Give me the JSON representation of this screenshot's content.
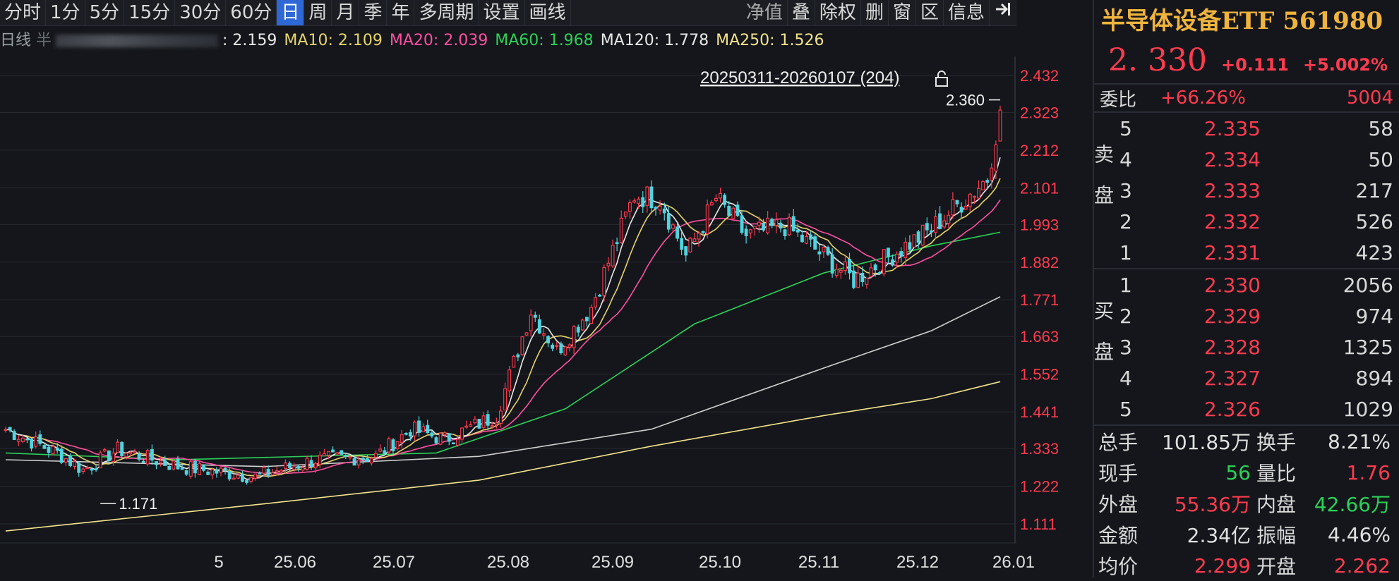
{
  "toolbar": {
    "periods": [
      "分时",
      "1分",
      "5分",
      "15分",
      "30分",
      "60分",
      "日",
      "周",
      "月",
      "季",
      "年",
      "多周期",
      "设置",
      "画线"
    ],
    "active_period": "日",
    "right_items": [
      "净值",
      "叠",
      "除权",
      "删",
      "窗",
      "区",
      "信息"
    ],
    "exit_icon": "exit-arrow-icon"
  },
  "ma_line": {
    "prefix": "日线",
    "name_blurred": "半",
    "ma5_value": ": 2.159",
    "ma10": "MA10: 2.109",
    "ma20": "MA20: 2.039",
    "ma60": "MA60: 1.968",
    "ma120": "MA120: 1.778",
    "ma250": "MA250: 1.526"
  },
  "chart": {
    "range_label": "20250311-20260107 (204)",
    "lock_icon": "lock-icon",
    "high_marker": "2.360",
    "low_marker": "1.171",
    "colors": {
      "up": "#ff3b4f",
      "down": "#4fd4e0",
      "ma5": "#e8e8e8",
      "ma10": "#e6d46b",
      "ma20": "#ff4fa0",
      "ma60": "#2bd158",
      "ma120": "#cfcfcf",
      "ma250": "#f2e38b",
      "axis": "#ff3b4f"
    }
  },
  "chart_data": {
    "type": "candlestick",
    "y_ticks": [
      "2.432",
      "2.323",
      "2.212",
      "2.101",
      "1.993",
      "1.882",
      "1.771",
      "1.663",
      "1.552",
      "1.441",
      "1.333",
      "1.222",
      "1.111"
    ],
    "ylim": [
      1.055,
      2.488
    ],
    "x_ticks": [
      "5",
      "25.06",
      "25.07",
      "25.08",
      "25.09",
      "25.10",
      "25.11",
      "25.12",
      "26.01"
    ],
    "anchors": [
      {
        "t": 0,
        "p": 1.39
      },
      {
        "t": 12,
        "p": 1.32
      },
      {
        "t": 18,
        "p": 1.27
      },
      {
        "t": 26,
        "p": 1.33
      },
      {
        "t": 40,
        "p": 1.28
      },
      {
        "t": 58,
        "p": 1.25
      },
      {
        "t": 72,
        "p": 1.3
      },
      {
        "t": 86,
        "p": 1.31
      },
      {
        "t": 94,
        "p": 1.39
      },
      {
        "t": 102,
        "p": 1.36
      },
      {
        "t": 114,
        "p": 1.43
      },
      {
        "t": 122,
        "p": 1.74
      },
      {
        "t": 128,
        "p": 1.62
      },
      {
        "t": 136,
        "p": 1.75
      },
      {
        "t": 146,
        "p": 2.08
      },
      {
        "t": 152,
        "p": 2.07
      },
      {
        "t": 158,
        "p": 1.9
      },
      {
        "t": 165,
        "p": 2.07
      },
      {
        "t": 172,
        "p": 1.96
      },
      {
        "t": 181,
        "p": 1.99
      },
      {
        "t": 190,
        "p": 1.9
      },
      {
        "t": 197,
        "p": 1.83
      },
      {
        "t": 209,
        "p": 1.93
      },
      {
        "t": 214,
        "p": 1.97
      },
      {
        "t": 222,
        "p": 2.06
      },
      {
        "t": 228,
        "p": 2.13
      },
      {
        "t": 231,
        "p": 2.33
      }
    ],
    "n_candles": 232,
    "ma_paths": {
      "ma60": [
        [
          0,
          1.32
        ],
        [
          40,
          1.3
        ],
        [
          100,
          1.32
        ],
        [
          130,
          1.45
        ],
        [
          160,
          1.7
        ],
        [
          190,
          1.85
        ],
        [
          215,
          1.93
        ],
        [
          231,
          1.97
        ]
      ],
      "ma120": [
        [
          0,
          1.3
        ],
        [
          60,
          1.28
        ],
        [
          110,
          1.31
        ],
        [
          150,
          1.39
        ],
        [
          190,
          1.57
        ],
        [
          215,
          1.68
        ],
        [
          231,
          1.78
        ]
      ],
      "ma250": [
        [
          0,
          1.09
        ],
        [
          60,
          1.17
        ],
        [
          110,
          1.24
        ],
        [
          150,
          1.34
        ],
        [
          190,
          1.43
        ],
        [
          215,
          1.48
        ],
        [
          231,
          1.53
        ]
      ]
    }
  },
  "panel": {
    "title": "半导体设备ETF 561980",
    "price": "2. 330",
    "change": "+0.111",
    "change_pct": "+5.002%",
    "weibi_label": "委比",
    "weibi_pct": "+66.26%",
    "weibi_num": "5004",
    "sell_label": "卖盘",
    "buy_label": "买盘",
    "sell": [
      {
        "lvl": "5",
        "price": "2.335",
        "vol": "58"
      },
      {
        "lvl": "4",
        "price": "2.334",
        "vol": "50"
      },
      {
        "lvl": "3",
        "price": "2.333",
        "vol": "217"
      },
      {
        "lvl": "2",
        "price": "2.332",
        "vol": "526"
      },
      {
        "lvl": "1",
        "price": "2.331",
        "vol": "423"
      }
    ],
    "buy": [
      {
        "lvl": "1",
        "price": "2.330",
        "vol": "2056"
      },
      {
        "lvl": "2",
        "price": "2.329",
        "vol": "974"
      },
      {
        "lvl": "3",
        "price": "2.328",
        "vol": "1325"
      },
      {
        "lvl": "4",
        "price": "2.327",
        "vol": "894"
      },
      {
        "lvl": "5",
        "price": "2.326",
        "vol": "1029"
      }
    ],
    "stats": [
      {
        "k": "总手",
        "v": "101.85万",
        "vc": "white",
        "k2": "换手",
        "v2": "8.21%",
        "v2c": "white"
      },
      {
        "k": "现手",
        "v": "56",
        "vc": "green",
        "k2": "量比",
        "v2": "1.76",
        "v2c": "red"
      },
      {
        "k": "外盘",
        "v": "55.36万",
        "vc": "red",
        "k2": "内盘",
        "v2": "42.66万",
        "v2c": "green"
      },
      {
        "k": "金额",
        "v": "2.34亿",
        "vc": "white",
        "k2": "振幅",
        "v2": "4.46%",
        "v2c": "white"
      },
      {
        "k": "均价",
        "v": "2.299",
        "vc": "red",
        "k2": "开盘",
        "v2": "2.262",
        "v2c": "red"
      }
    ]
  }
}
